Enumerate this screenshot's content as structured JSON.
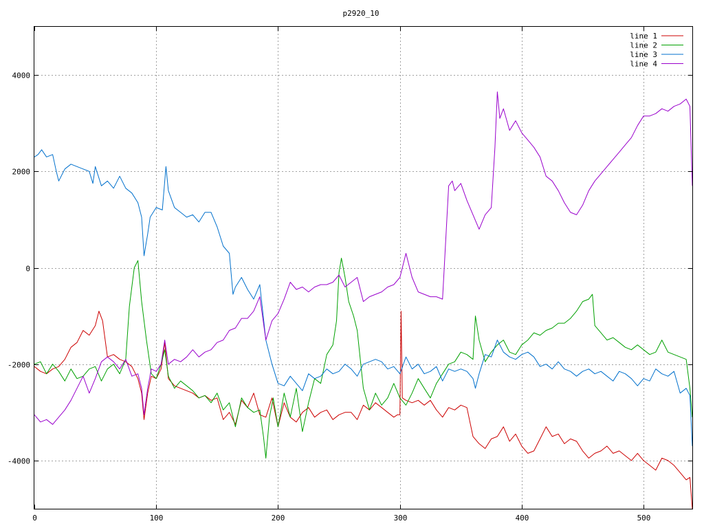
{
  "chart_data": {
    "type": "line",
    "title": "p2920_10",
    "xlabel": "",
    "ylabel": "",
    "xlim": [
      0,
      540
    ],
    "ylim": [
      -5000,
      5000
    ],
    "x_ticks": [
      0,
      100,
      200,
      300,
      400,
      500
    ],
    "y_ticks": [
      -4000,
      -2000,
      0,
      2000,
      4000
    ],
    "grid": true,
    "legend_position": "top-right",
    "series": [
      {
        "name": "line 1",
        "color": "#cc0000",
        "x": [
          0,
          5,
          10,
          15,
          20,
          25,
          30,
          35,
          40,
          45,
          50,
          53,
          56,
          60,
          65,
          70,
          75,
          80,
          85,
          88,
          90,
          93,
          96,
          100,
          104,
          107,
          110,
          115,
          120,
          125,
          130,
          135,
          140,
          145,
          150,
          155,
          160,
          165,
          170,
          175,
          180,
          185,
          190,
          195,
          200,
          205,
          210,
          215,
          220,
          225,
          230,
          235,
          240,
          245,
          250,
          255,
          260,
          265,
          270,
          275,
          280,
          285,
          290,
          295,
          298,
          300,
          301,
          302,
          305,
          310,
          315,
          320,
          325,
          330,
          335,
          340,
          345,
          350,
          355,
          360,
          365,
          370,
          375,
          380,
          385,
          390,
          395,
          400,
          405,
          410,
          415,
          420,
          425,
          430,
          435,
          440,
          445,
          450,
          455,
          460,
          465,
          470,
          475,
          480,
          485,
          490,
          495,
          500,
          505,
          510,
          515,
          520,
          525,
          530,
          535,
          538,
          540
        ],
        "values": [
          -2050,
          -2150,
          -2200,
          -2100,
          -2050,
          -1900,
          -1650,
          -1550,
          -1300,
          -1400,
          -1200,
          -900,
          -1100,
          -1850,
          -1800,
          -1900,
          -1950,
          -2050,
          -2300,
          -2600,
          -3150,
          -2600,
          -2250,
          -2300,
          -2100,
          -1550,
          -2300,
          -2450,
          -2500,
          -2550,
          -2600,
          -2700,
          -2650,
          -2750,
          -2700,
          -3150,
          -3000,
          -3250,
          -2750,
          -2900,
          -2600,
          -3050,
          -3100,
          -2700,
          -3300,
          -2800,
          -3100,
          -3200,
          -3000,
          -2900,
          -3100,
          -3000,
          -2950,
          -3150,
          -3050,
          -3000,
          -3000,
          -3150,
          -2850,
          -2950,
          -2800,
          -2900,
          -3000,
          -3100,
          -3050,
          -3050,
          -900,
          -2700,
          -2750,
          -2800,
          -2750,
          -2850,
          -2750,
          -2950,
          -3100,
          -2900,
          -2950,
          -2850,
          -2900,
          -3500,
          -3650,
          -3750,
          -3550,
          -3500,
          -3300,
          -3600,
          -3450,
          -3700,
          -3850,
          -3800,
          -3550,
          -3300,
          -3500,
          -3450,
          -3650,
          -3550,
          -3600,
          -3800,
          -3950,
          -3850,
          -3800,
          -3700,
          -3850,
          -3800,
          -3900,
          -4000,
          -3850,
          -4000,
          -4100,
          -4200,
          -3950,
          -4000,
          -4100,
          -4250,
          -4400,
          -4350,
          -5000
        ]
      },
      {
        "name": "line 2",
        "color": "#00a000",
        "x": [
          0,
          5,
          10,
          15,
          20,
          25,
          30,
          35,
          40,
          45,
          50,
          55,
          60,
          65,
          70,
          75,
          78,
          82,
          85,
          88,
          92,
          96,
          100,
          104,
          107,
          110,
          115,
          120,
          125,
          130,
          135,
          140,
          145,
          150,
          155,
          160,
          165,
          170,
          175,
          180,
          185,
          188,
          190,
          193,
          196,
          200,
          205,
          210,
          215,
          220,
          225,
          230,
          235,
          240,
          245,
          248,
          250,
          252,
          255,
          258,
          262,
          265,
          270,
          275,
          280,
          285,
          290,
          295,
          300,
          305,
          310,
          315,
          320,
          325,
          330,
          335,
          340,
          345,
          350,
          355,
          360,
          362,
          365,
          370,
          375,
          380,
          385,
          390,
          395,
          400,
          405,
          410,
          415,
          420,
          425,
          430,
          435,
          440,
          445,
          450,
          455,
          458,
          460,
          465,
          470,
          475,
          480,
          485,
          490,
          495,
          500,
          505,
          510,
          515,
          520,
          525,
          530,
          535,
          538,
          540
        ],
        "values": [
          -2000,
          -1950,
          -2200,
          -2000,
          -2150,
          -2350,
          -2100,
          -2300,
          -2250,
          -2100,
          -2050,
          -2350,
          -2100,
          -2000,
          -2200,
          -1900,
          -800,
          0,
          150,
          -700,
          -1500,
          -2200,
          -2300,
          -2000,
          -1700,
          -2250,
          -2500,
          -2350,
          -2450,
          -2550,
          -2700,
          -2650,
          -2800,
          -2600,
          -2950,
          -2800,
          -3300,
          -2700,
          -2900,
          -3000,
          -2950,
          -3500,
          -3950,
          -3100,
          -2700,
          -3300,
          -2600,
          -3100,
          -2500,
          -3400,
          -2800,
          -2300,
          -2400,
          -1800,
          -1600,
          -1100,
          -100,
          200,
          -200,
          -700,
          -1000,
          -1300,
          -2500,
          -2950,
          -2600,
          -2850,
          -2700,
          -2400,
          -2700,
          -2850,
          -2600,
          -2300,
          -2500,
          -2700,
          -2400,
          -2200,
          -2000,
          -1950,
          -1750,
          -1800,
          -1900,
          -1000,
          -1500,
          -1950,
          -1750,
          -1600,
          -1500,
          -1750,
          -1800,
          -1600,
          -1500,
          -1350,
          -1400,
          -1300,
          -1250,
          -1150,
          -1150,
          -1050,
          -900,
          -700,
          -650,
          -550,
          -1200,
          -1350,
          -1500,
          -1450,
          -1550,
          -1650,
          -1700,
          -1600,
          -1700,
          -1800,
          -1750,
          -1500,
          -1750,
          -1800,
          -1850,
          -1900,
          -2500,
          -3100
        ]
      },
      {
        "name": "line 3",
        "color": "#0070cc",
        "x": [
          0,
          3,
          6,
          10,
          15,
          18,
          20,
          25,
          30,
          35,
          40,
          45,
          48,
          50,
          55,
          60,
          65,
          70,
          75,
          80,
          85,
          88,
          90,
          93,
          95,
          100,
          105,
          108,
          110,
          115,
          120,
          125,
          130,
          135,
          140,
          145,
          150,
          155,
          160,
          163,
          165,
          170,
          175,
          180,
          185,
          190,
          195,
          200,
          205,
          210,
          215,
          220,
          225,
          230,
          235,
          240,
          245,
          250,
          255,
          260,
          265,
          270,
          275,
          280,
          285,
          290,
          295,
          300,
          305,
          310,
          315,
          320,
          325,
          330,
          335,
          340,
          345,
          350,
          355,
          360,
          362,
          365,
          370,
          375,
          380,
          385,
          390,
          395,
          400,
          405,
          410,
          415,
          420,
          425,
          430,
          435,
          440,
          445,
          450,
          455,
          460,
          465,
          470,
          475,
          480,
          485,
          490,
          495,
          500,
          505,
          510,
          515,
          520,
          525,
          530,
          535,
          538,
          540
        ],
        "values": [
          2300,
          2350,
          2450,
          2300,
          2350,
          2000,
          1800,
          2050,
          2150,
          2100,
          2050,
          2000,
          1750,
          2100,
          1700,
          1800,
          1650,
          1900,
          1650,
          1550,
          1350,
          1050,
          250,
          700,
          1050,
          1250,
          1200,
          2100,
          1600,
          1250,
          1150,
          1050,
          1100,
          950,
          1150,
          1150,
          850,
          450,
          300,
          -550,
          -400,
          -200,
          -450,
          -650,
          -350,
          -1500,
          -2000,
          -2400,
          -2450,
          -2250,
          -2400,
          -2550,
          -2200,
          -2300,
          -2250,
          -2100,
          -2200,
          -2150,
          -2000,
          -2100,
          -2250,
          -2000,
          -1950,
          -1900,
          -1950,
          -2100,
          -2050,
          -2200,
          -1850,
          -2100,
          -2000,
          -2200,
          -2150,
          -2050,
          -2350,
          -2100,
          -2150,
          -2100,
          -2150,
          -2300,
          -2500,
          -2200,
          -1800,
          -1850,
          -1500,
          -1750,
          -1850,
          -1900,
          -1800,
          -1750,
          -1850,
          -2050,
          -2000,
          -2100,
          -1950,
          -2100,
          -2150,
          -2250,
          -2150,
          -2100,
          -2200,
          -2150,
          -2250,
          -2350,
          -2150,
          -2200,
          -2300,
          -2450,
          -2300,
          -2350,
          -2100,
          -2200,
          -2250,
          -2150,
          -2600,
          -2500,
          -2650,
          -3700
        ]
      },
      {
        "name": "line 4",
        "color": "#9900cc",
        "x": [
          0,
          5,
          10,
          15,
          20,
          25,
          30,
          35,
          40,
          45,
          50,
          55,
          60,
          65,
          70,
          75,
          80,
          85,
          88,
          90,
          93,
          96,
          100,
          104,
          107,
          110,
          115,
          120,
          125,
          130,
          135,
          140,
          145,
          150,
          155,
          160,
          165,
          170,
          175,
          180,
          185,
          190,
          195,
          200,
          205,
          210,
          215,
          220,
          225,
          230,
          235,
          240,
          245,
          250,
          255,
          260,
          265,
          270,
          275,
          280,
          285,
          290,
          295,
          300,
          305,
          310,
          315,
          320,
          325,
          330,
          335,
          340,
          343,
          345,
          350,
          355,
          360,
          365,
          370,
          375,
          378,
          380,
          382,
          385,
          390,
          395,
          400,
          405,
          410,
          415,
          420,
          425,
          430,
          435,
          440,
          445,
          450,
          455,
          460,
          465,
          470,
          475,
          480,
          485,
          490,
          495,
          500,
          505,
          510,
          515,
          520,
          525,
          530,
          535,
          538,
          540
        ],
        "values": [
          -3050,
          -3200,
          -3150,
          -3250,
          -3100,
          -2950,
          -2750,
          -2500,
          -2250,
          -2600,
          -2300,
          -1950,
          -1850,
          -1950,
          -2100,
          -1900,
          -2250,
          -2200,
          -2500,
          -3050,
          -2500,
          -2100,
          -2150,
          -2000,
          -1500,
          -2000,
          -1900,
          -1950,
          -1850,
          -1700,
          -1850,
          -1750,
          -1700,
          -1550,
          -1500,
          -1300,
          -1250,
          -1050,
          -1050,
          -900,
          -600,
          -1500,
          -1100,
          -950,
          -650,
          -300,
          -450,
          -400,
          -500,
          -400,
          -350,
          -350,
          -300,
          -150,
          -400,
          -300,
          -200,
          -700,
          -600,
          -550,
          -500,
          -400,
          -350,
          -200,
          300,
          -200,
          -500,
          -550,
          -600,
          -600,
          -650,
          1700,
          1800,
          1600,
          1750,
          1400,
          1100,
          800,
          1100,
          1250,
          2500,
          3650,
          3100,
          3300,
          2850,
          3050,
          2800,
          2650,
          2500,
          2300,
          1900,
          1800,
          1600,
          1350,
          1150,
          1100,
          1300,
          1600,
          1800,
          1950,
          2100,
          2250,
          2400,
          2550,
          2700,
          2950,
          3150,
          3150,
          3200,
          3300,
          3250,
          3350,
          3400,
          3500,
          3350,
          1700
        ]
      }
    ]
  }
}
